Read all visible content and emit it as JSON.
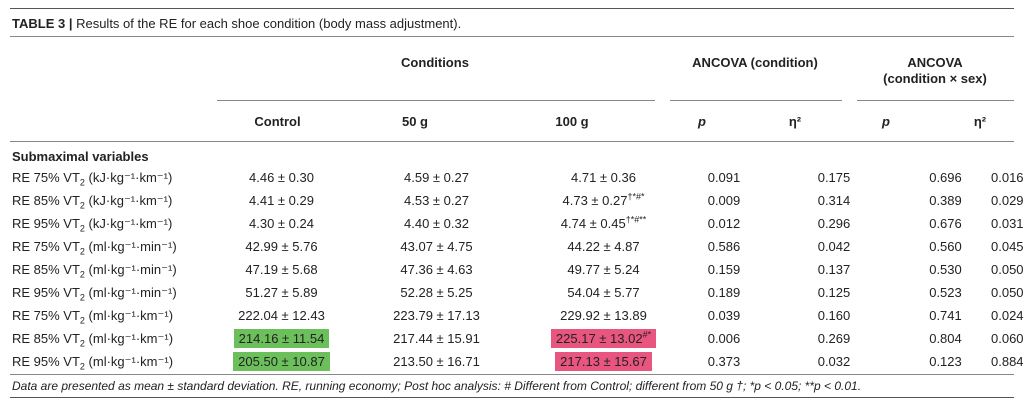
{
  "caption": {
    "label": "TABLE 3 |",
    "text": " Results of the RE for each shoe condition (body mass adjustment)."
  },
  "headers": {
    "conditions": "Conditions",
    "ancova_condition": "ANCOVA (condition)",
    "ancova_sex_line1": "ANCOVA",
    "ancova_sex_line2": "(condition × sex)",
    "control": "Control",
    "g50": "50 g",
    "g100": "100 g",
    "p": "p",
    "eta2": "η²"
  },
  "section_label": "Submaximal variables",
  "highlight_colors": {
    "green": "#6cc05c",
    "pink": "#e8557e"
  },
  "rows": [
    {
      "pct": "RE 75% VT",
      "unit": " (kJ·kg⁻¹·km⁻¹)",
      "control": "4.46 ± 0.30",
      "g50": "4.59 ± 0.27",
      "g100": "4.71 ± 0.36",
      "g100_sup": "",
      "p1": "0.091",
      "eta1": "0.175",
      "p2": "0.696",
      "eta2": "0.016"
    },
    {
      "pct": "RE 85% VT",
      "unit": " (kJ·kg⁻¹·km⁻¹)",
      "control": "4.41 ± 0.29",
      "g50": "4.53 ± 0.27",
      "g100": "4.73 ± 0.27",
      "g100_sup": "†*#*",
      "p1": "0.009",
      "eta1": "0.314",
      "p2": "0.389",
      "eta2": "0.029"
    },
    {
      "pct": "RE 95% VT",
      "unit": " (kJ·kg⁻¹·km⁻¹)",
      "control": "4.30 ± 0.24",
      "g50": "4.40 ± 0.32",
      "g100": "4.74 ± 0.45",
      "g100_sup": "†*#**",
      "p1": "0.012",
      "eta1": "0.296",
      "p2": "0.676",
      "eta2": "0.031"
    },
    {
      "pct": "RE 75% VT",
      "unit": " (ml·kg⁻¹·min⁻¹)",
      "control": "42.99 ± 5.76",
      "g50": "43.07 ± 4.75",
      "g100": "44.22 ± 4.87",
      "g100_sup": "",
      "p1": "0.586",
      "eta1": "0.042",
      "p2": "0.560",
      "eta2": "0.045"
    },
    {
      "pct": "RE 85% VT",
      "unit": " (ml·kg⁻¹·min⁻¹)",
      "control": "47.19 ± 5.68",
      "g50": "47.36 ± 4.63",
      "g100": "49.77 ± 5.24",
      "g100_sup": "",
      "p1": "0.159",
      "eta1": "0.137",
      "p2": "0.530",
      "eta2": "0.050"
    },
    {
      "pct": "RE 95% VT",
      "unit": " (ml·kg⁻¹·min⁻¹)",
      "control": "51.27 ± 5.89",
      "g50": "52.28 ± 5.25",
      "g100": "54.04 ± 5.77",
      "g100_sup": "",
      "p1": "0.189",
      "eta1": "0.125",
      "p2": "0.523",
      "eta2": "0.050"
    },
    {
      "pct": "RE 75% VT",
      "unit": " (ml·kg⁻¹·km⁻¹)",
      "control": "222.04 ± 12.43",
      "g50": "223.79 ± 17.13",
      "g100": "229.92 ± 13.89",
      "g100_sup": "",
      "p1": "0.039",
      "eta1": "0.160",
      "p2": "0.741",
      "eta2": "0.024"
    },
    {
      "pct": "RE 85% VT",
      "unit": " (ml·kg⁻¹·km⁻¹)",
      "control": "214.16 ± 11.54",
      "control_hl": "green",
      "g50": "217.44 ± 15.91",
      "g100": "225.17 ± 13.02",
      "g100_sup": "#*",
      "g100_hl": "pink",
      "p1": "0.006",
      "eta1": "0.269",
      "p2": "0.804",
      "eta2": "0.060"
    },
    {
      "pct": "RE 95% VT",
      "unit": " (ml·kg⁻¹·km⁻¹)",
      "control": "205.50 ± 10.87",
      "control_hl": "green",
      "g50": "213.50 ± 16.71",
      "g100": "217.13 ± 15.67",
      "g100_sup": "",
      "g100_hl": "pink",
      "p1": "0.373",
      "eta1": "0.032",
      "p2": "0.123",
      "eta2": "0.884"
    }
  ],
  "vt_subscript": "2",
  "footnote": "Data are presented as mean ± standard deviation. RE, running economy; Post hoc analysis: # Different from Control; different from 50 g †; *p < 0.05; **p < 0.01."
}
